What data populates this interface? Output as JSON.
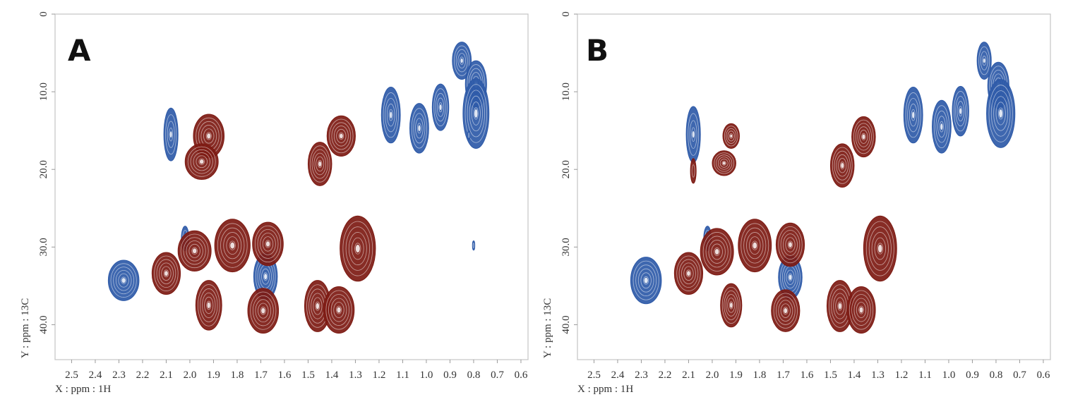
{
  "figure": {
    "colors": {
      "positive": "#7d1a12",
      "negative": "#2e5aa8"
    },
    "panels": [
      {
        "label": "A",
        "xlabel": "X : ppm : 1H",
        "ylabel": "Y : ppm : 13C"
      },
      {
        "label": "B",
        "xlabel": "X : ppm : 1H",
        "ylabel": "Y : ppm : 13C"
      }
    ]
  },
  "chart_data": [
    {
      "type": "scatter",
      "title": "",
      "panel_label": "A",
      "xlabel": "X : ppm : 1H",
      "ylabel": "Y : ppm : 13C",
      "xlim": [
        2.57,
        0.57
      ],
      "ylim": [
        0,
        44.5
      ],
      "x_reversed": true,
      "y_reversed": true,
      "x_ticks": [
        "2.5",
        "2.4",
        "2.3",
        "2.2",
        "2.1",
        "2.0",
        "1.9",
        "1.8",
        "1.7",
        "1.6",
        "1.5",
        "1.4",
        "1.3",
        "1.2",
        "1.1",
        "1.0",
        "0.9",
        "0.8",
        "0.7",
        "0.6"
      ],
      "y_ticks": [
        "0",
        "10.0",
        "20.0",
        "30.0",
        "40.0"
      ],
      "grid": false,
      "series": [
        {
          "name": "",
          "color": "#2e5aa8",
          "peaks": [
            {
              "x": 0.85,
              "y": 6.0,
              "w": 0.04,
              "h": 2.4
            },
            {
              "x": 0.79,
              "y": 9.0,
              "w": 0.045,
              "h": 3.0
            },
            {
              "x": 0.79,
              "y": 12.8,
              "w": 0.055,
              "h": 4.5
            },
            {
              "x": 0.94,
              "y": 12.0,
              "w": 0.035,
              "h": 3.0
            },
            {
              "x": 1.03,
              "y": 14.7,
              "w": 0.04,
              "h": 3.2
            },
            {
              "x": 1.15,
              "y": 13.0,
              "w": 0.04,
              "h": 3.6
            },
            {
              "x": 2.08,
              "y": 15.5,
              "w": 0.03,
              "h": 3.4
            },
            {
              "x": 2.28,
              "y": 34.3,
              "w": 0.065,
              "h": 2.6
            },
            {
              "x": 1.68,
              "y": 33.8,
              "w": 0.05,
              "h": 3.0
            },
            {
              "x": 2.02,
              "y": 28.9,
              "w": 0.016,
              "h": 1.6
            },
            {
              "x": 0.82,
              "y": 15.6,
              "w": 0.005,
              "h": 0.6
            },
            {
              "x": 0.8,
              "y": 29.8,
              "w": 0.005,
              "h": 0.6
            }
          ]
        },
        {
          "name": "",
          "color": "#7d1a12",
          "peaks": [
            {
              "x": 1.92,
              "y": 15.7,
              "w": 0.065,
              "h": 2.8
            },
            {
              "x": 1.95,
              "y": 19.0,
              "w": 0.07,
              "h": 2.3
            },
            {
              "x": 1.45,
              "y": 19.3,
              "w": 0.05,
              "h": 2.8
            },
            {
              "x": 1.36,
              "y": 15.7,
              "w": 0.06,
              "h": 2.6
            },
            {
              "x": 1.98,
              "y": 30.5,
              "w": 0.07,
              "h": 2.6
            },
            {
              "x": 1.82,
              "y": 29.8,
              "w": 0.075,
              "h": 3.4
            },
            {
              "x": 1.67,
              "y": 29.6,
              "w": 0.065,
              "h": 2.8
            },
            {
              "x": 1.29,
              "y": 30.2,
              "w": 0.075,
              "h": 4.2
            },
            {
              "x": 2.1,
              "y": 33.4,
              "w": 0.06,
              "h": 2.7
            },
            {
              "x": 1.92,
              "y": 37.5,
              "w": 0.055,
              "h": 3.2
            },
            {
              "x": 1.69,
              "y": 38.2,
              "w": 0.065,
              "h": 2.9
            },
            {
              "x": 1.46,
              "y": 37.6,
              "w": 0.055,
              "h": 3.3
            },
            {
              "x": 1.37,
              "y": 38.1,
              "w": 0.065,
              "h": 3.0
            }
          ]
        }
      ]
    },
    {
      "type": "scatter",
      "title": "",
      "panel_label": "B",
      "xlabel": "X : ppm : 1H",
      "ylabel": "Y : ppm : 13C",
      "xlim": [
        2.57,
        0.57
      ],
      "ylim": [
        0,
        44.5
      ],
      "x_reversed": true,
      "y_reversed": true,
      "x_ticks": [
        "2.5",
        "2.4",
        "2.3",
        "2.2",
        "2.1",
        "2.0",
        "1.9",
        "1.8",
        "1.7",
        "1.6",
        "1.5",
        "1.4",
        "1.3",
        "1.2",
        "1.1",
        "1.0",
        "0.9",
        "0.8",
        "0.7",
        "0.6"
      ],
      "y_ticks": [
        "0",
        "10.0",
        "20.0",
        "30.0",
        "40.0"
      ],
      "grid": false,
      "series": [
        {
          "name": "",
          "color": "#2e5aa8",
          "peaks": [
            {
              "x": 0.85,
              "y": 6.0,
              "w": 0.03,
              "h": 2.4
            },
            {
              "x": 0.79,
              "y": 9.2,
              "w": 0.045,
              "h": 3.0
            },
            {
              "x": 0.78,
              "y": 12.8,
              "w": 0.06,
              "h": 4.4
            },
            {
              "x": 0.95,
              "y": 12.5,
              "w": 0.035,
              "h": 3.2
            },
            {
              "x": 1.03,
              "y": 14.5,
              "w": 0.04,
              "h": 3.4
            },
            {
              "x": 1.15,
              "y": 13.0,
              "w": 0.04,
              "h": 3.6
            },
            {
              "x": 2.08,
              "y": 15.5,
              "w": 0.03,
              "h": 3.6
            },
            {
              "x": 2.28,
              "y": 34.3,
              "w": 0.065,
              "h": 3.0
            },
            {
              "x": 1.67,
              "y": 33.9,
              "w": 0.05,
              "h": 2.8
            },
            {
              "x": 2.02,
              "y": 28.9,
              "w": 0.016,
              "h": 1.6
            }
          ]
        },
        {
          "name": "",
          "color": "#7d1a12",
          "peaks": [
            {
              "x": 1.92,
              "y": 15.7,
              "w": 0.035,
              "h": 1.6
            },
            {
              "x": 1.95,
              "y": 19.2,
              "w": 0.05,
              "h": 1.6
            },
            {
              "x": 2.08,
              "y": 20.2,
              "w": 0.012,
              "h": 1.6
            },
            {
              "x": 1.45,
              "y": 19.5,
              "w": 0.05,
              "h": 2.8
            },
            {
              "x": 1.36,
              "y": 15.8,
              "w": 0.05,
              "h": 2.6
            },
            {
              "x": 1.98,
              "y": 30.6,
              "w": 0.07,
              "h": 3.0
            },
            {
              "x": 1.82,
              "y": 29.8,
              "w": 0.07,
              "h": 3.4
            },
            {
              "x": 1.67,
              "y": 29.7,
              "w": 0.06,
              "h": 2.8
            },
            {
              "x": 1.29,
              "y": 30.2,
              "w": 0.07,
              "h": 4.2
            },
            {
              "x": 2.1,
              "y": 33.4,
              "w": 0.06,
              "h": 2.7
            },
            {
              "x": 1.92,
              "y": 37.5,
              "w": 0.045,
              "h": 2.8
            },
            {
              "x": 1.69,
              "y": 38.2,
              "w": 0.06,
              "h": 2.7
            },
            {
              "x": 1.46,
              "y": 37.6,
              "w": 0.055,
              "h": 3.3
            },
            {
              "x": 1.37,
              "y": 38.1,
              "w": 0.06,
              "h": 3.0
            }
          ]
        }
      ]
    }
  ]
}
